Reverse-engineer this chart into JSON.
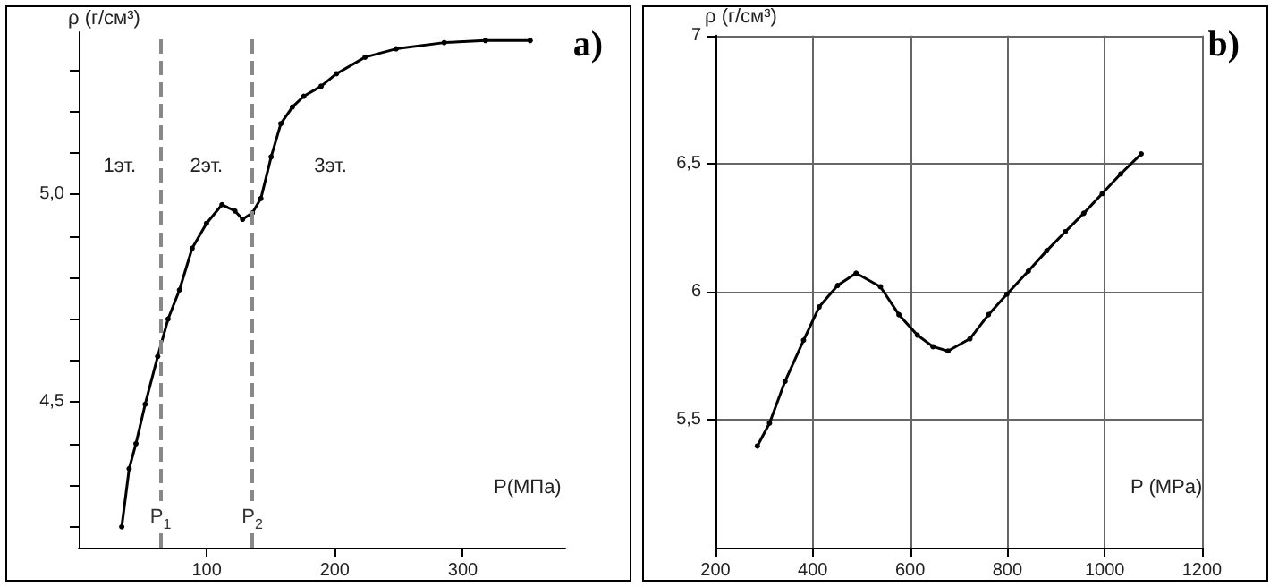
{
  "chart_data": [
    {
      "type": "line",
      "title": "a)",
      "xlabel": "P(МПа)",
      "ylabel": "ρ (г/см³)",
      "xlim": [
        0,
        380
      ],
      "ylim": [
        4.15,
        5.39
      ],
      "xticks": [
        100,
        200,
        300
      ],
      "yticks": [
        {
          "value": 4.2,
          "label": null
        },
        {
          "value": 4.3,
          "label": null
        },
        {
          "value": 4.4,
          "label": null
        },
        {
          "value": 4.5,
          "label": "4,5"
        },
        {
          "value": 4.6,
          "label": null
        },
        {
          "value": 4.7,
          "label": null
        },
        {
          "value": 4.8,
          "label": null
        },
        {
          "value": 4.9,
          "label": null
        },
        {
          "value": 5.0,
          "label": "5,0"
        },
        {
          "value": 5.1,
          "label": null
        },
        {
          "value": 5.2,
          "label": null
        },
        {
          "value": 5.3,
          "label": null
        }
      ],
      "grid": false,
      "marker": "circle",
      "line_style": "solid",
      "x": [
        33.6,
        39.4,
        44.7,
        51.9,
        61.7,
        69.8,
        78.7,
        88.6,
        99.8,
        111.9,
        122,
        128,
        135.6,
        142.3,
        150.3,
        157.9,
        166.9,
        175.8,
        189.3,
        201.3,
        223.7,
        247.9,
        285.5,
        317.7,
        352.6
      ],
      "series": [
        {
          "color": "#000000",
          "values": [
            4.2,
            4.34,
            4.4,
            4.495,
            4.61,
            4.7,
            4.77,
            4.87,
            4.93,
            4.975,
            4.96,
            4.94,
            4.955,
            4.99,
            5.09,
            5.17,
            5.21,
            5.236,
            5.26,
            5.29,
            5.33,
            5.35,
            5.365,
            5.37,
            5.37
          ]
        }
      ],
      "ref_lines": [
        {
          "axis": "x",
          "value": 64,
          "label": "P$_{1}$",
          "color": "#888888",
          "line_style": "dashed"
        },
        {
          "axis": "x",
          "value": 135.6,
          "label": "P$_{2}$",
          "color": "#888888",
          "line_style": "dashed"
        }
      ],
      "annotations": [
        "1эт.",
        "2эт.",
        "3эт."
      ]
    },
    {
      "type": "line",
      "title": "b)",
      "xlabel": "P (MPa)",
      "ylabel": "ρ (г/см³)",
      "xlim": [
        200,
        1200
      ],
      "ylim": [
        5,
        7
      ],
      "xticks": [
        200,
        400,
        600,
        800,
        1000,
        1200
      ],
      "yticks": [
        {
          "value": 5.5,
          "label": "5,5"
        },
        {
          "value": 6,
          "label": "6"
        },
        {
          "value": 6.5,
          "label": "6,5"
        },
        {
          "value": 7,
          "label": "7"
        }
      ],
      "grid": true,
      "marker": "circle",
      "line_style": "solid",
      "x": [
        286,
        311,
        343,
        381,
        413,
        451,
        489,
        539,
        577,
        615,
        647,
        678,
        723,
        761,
        799,
        843,
        881,
        919,
        957,
        995,
        1033,
        1075
      ],
      "series": [
        {
          "color": "#000000",
          "values": [
            5.397,
            5.486,
            5.65,
            5.81,
            5.94,
            6.024,
            6.072,
            6.019,
            5.91,
            5.83,
            5.785,
            5.768,
            5.816,
            5.91,
            5.99,
            6.08,
            6.16,
            6.234,
            6.306,
            6.383,
            6.46,
            6.538
          ]
        }
      ]
    }
  ]
}
